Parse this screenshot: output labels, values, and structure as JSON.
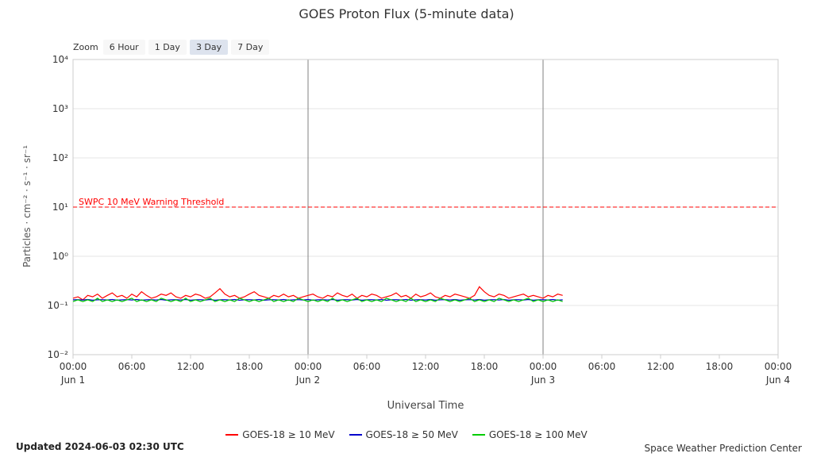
{
  "title": "GOES Proton Flux (5-minute data)",
  "zoom": {
    "label": "Zoom",
    "buttons": [
      {
        "label": "6 Hour",
        "selected": false
      },
      {
        "label": "1 Day",
        "selected": false
      },
      {
        "label": "3 Day",
        "selected": true
      },
      {
        "label": "7 Day",
        "selected": false
      }
    ]
  },
  "x_axis": {
    "title": "Universal Time"
  },
  "y_axis": {
    "title": "Particles · cm⁻² · s⁻¹ · sr⁻¹"
  },
  "footer": {
    "updated": "Updated 2024-06-03 02:30 UTC",
    "credit": "Space Weather Prediction Center"
  },
  "colors": {
    "grid": "#e6e6e6",
    "axis": "#cccccc",
    "day_line": "#808080",
    "text": "#333333",
    "threshold": "#ff0000",
    "zoom_selected_bg": "#dde3ee",
    "zoom_bg": "#f7f7f7"
  },
  "chart_data": {
    "type": "line",
    "title": "GOES Proton Flux (5-minute data)",
    "xlabel": "Universal Time",
    "ylabel": "Particles · cm⁻² · s⁻¹ · sr⁻¹",
    "y_scale": "log",
    "ylim": [
      0.01,
      10000
    ],
    "xlim": [
      0,
      72
    ],
    "x_unit": "hours since 2024-06-01 00:00 UTC",
    "grid": "horizontal-major",
    "legend_position": "bottom",
    "x_ticks": [
      {
        "label": "00:00",
        "hours": 0
      },
      {
        "label": "06:00",
        "hours": 6
      },
      {
        "label": "12:00",
        "hours": 12
      },
      {
        "label": "18:00",
        "hours": 18
      },
      {
        "label": "00:00",
        "hours": 24
      },
      {
        "label": "06:00",
        "hours": 30
      },
      {
        "label": "12:00",
        "hours": 36
      },
      {
        "label": "18:00",
        "hours": 42
      },
      {
        "label": "00:00",
        "hours": 48
      },
      {
        "label": "06:00",
        "hours": 54
      },
      {
        "label": "12:00",
        "hours": 60
      },
      {
        "label": "18:00",
        "hours": 66
      },
      {
        "label": "00:00",
        "hours": 72
      }
    ],
    "day_labels": [
      {
        "label": "Jun 1",
        "hours": 0
      },
      {
        "label": "Jun 2",
        "hours": 24
      },
      {
        "label": "Jun 3",
        "hours": 48
      },
      {
        "label": "Jun 4",
        "hours": 72
      }
    ],
    "day_lines_hours": [
      24,
      48
    ],
    "y_ticks": [
      {
        "label": "10⁴",
        "value": 10000
      },
      {
        "label": "10³",
        "value": 1000
      },
      {
        "label": "10²",
        "value": 100
      },
      {
        "label": "10¹",
        "value": 10
      },
      {
        "label": "10⁰",
        "value": 1
      },
      {
        "label": "10⁻¹",
        "value": 0.1
      },
      {
        "label": "10⁻²",
        "value": 0.01
      }
    ],
    "threshold": {
      "label": "SWPC 10 MeV Warning Threshold",
      "value": 10,
      "color": "#ff0000"
    },
    "x_start": 0,
    "x_step": 0.5,
    "series": [
      {
        "name": "GOES-18 ≥ 10 MeV",
        "color": "#ff0000",
        "values": [
          0.14,
          0.15,
          0.13,
          0.16,
          0.15,
          0.17,
          0.14,
          0.16,
          0.18,
          0.15,
          0.16,
          0.14,
          0.17,
          0.15,
          0.19,
          0.16,
          0.14,
          0.15,
          0.17,
          0.16,
          0.18,
          0.15,
          0.14,
          0.16,
          0.15,
          0.17,
          0.16,
          0.14,
          0.15,
          0.18,
          0.22,
          0.17,
          0.15,
          0.16,
          0.14,
          0.15,
          0.17,
          0.19,
          0.16,
          0.15,
          0.14,
          0.16,
          0.15,
          0.17,
          0.15,
          0.16,
          0.14,
          0.15,
          0.16,
          0.17,
          0.15,
          0.14,
          0.16,
          0.15,
          0.18,
          0.16,
          0.15,
          0.17,
          0.14,
          0.16,
          0.15,
          0.17,
          0.16,
          0.14,
          0.15,
          0.16,
          0.18,
          0.15,
          0.16,
          0.14,
          0.17,
          0.15,
          0.16,
          0.18,
          0.15,
          0.14,
          0.16,
          0.15,
          0.17,
          0.16,
          0.15,
          0.14,
          0.16,
          0.24,
          0.19,
          0.16,
          0.15,
          0.17,
          0.16,
          0.14,
          0.15,
          0.16,
          0.17,
          0.15,
          0.16,
          0.15,
          0.14,
          0.16,
          0.15,
          0.17,
          0.16
        ]
      },
      {
        "name": "GOES-18 ≥ 50 MeV",
        "color": "#0000cc",
        "values": [
          0.13,
          0.131,
          0.129,
          0.132,
          0.128,
          0.13,
          0.131,
          0.129,
          0.132,
          0.128,
          0.13,
          0.131,
          0.129,
          0.132,
          0.128,
          0.13,
          0.131,
          0.129,
          0.132,
          0.128,
          0.13,
          0.131,
          0.129,
          0.132,
          0.128,
          0.13,
          0.131,
          0.129,
          0.132,
          0.128,
          0.13,
          0.131,
          0.129,
          0.132,
          0.128,
          0.13,
          0.131,
          0.129,
          0.132,
          0.128,
          0.13,
          0.131,
          0.129,
          0.132,
          0.128,
          0.13,
          0.131,
          0.129,
          0.132,
          0.128,
          0.13,
          0.131,
          0.129,
          0.132,
          0.128,
          0.13,
          0.131,
          0.129,
          0.132,
          0.128,
          0.13,
          0.131,
          0.129,
          0.132,
          0.128,
          0.13,
          0.131,
          0.129,
          0.132,
          0.128,
          0.13,
          0.131,
          0.129,
          0.132,
          0.128,
          0.13,
          0.131,
          0.129,
          0.132,
          0.128,
          0.13,
          0.131,
          0.129,
          0.132,
          0.128,
          0.13,
          0.131,
          0.129,
          0.132,
          0.128,
          0.13,
          0.131,
          0.129,
          0.132,
          0.128,
          0.13,
          0.131,
          0.129,
          0.132,
          0.128,
          0.13
        ]
      },
      {
        "name": "GOES-18 ≥ 100 MeV",
        "color": "#00cc00",
        "values": [
          0.12,
          0.13,
          0.12,
          0.13,
          0.12,
          0.14,
          0.12,
          0.13,
          0.12,
          0.13,
          0.12,
          0.13,
          0.14,
          0.12,
          0.13,
          0.12,
          0.13,
          0.12,
          0.14,
          0.13,
          0.12,
          0.13,
          0.12,
          0.14,
          0.12,
          0.13,
          0.12,
          0.13,
          0.14,
          0.12,
          0.13,
          0.12,
          0.13,
          0.12,
          0.14,
          0.13,
          0.12,
          0.13,
          0.12,
          0.13,
          0.14,
          0.12,
          0.13,
          0.12,
          0.13,
          0.12,
          0.14,
          0.13,
          0.12,
          0.13,
          0.12,
          0.13,
          0.12,
          0.14,
          0.12,
          0.13,
          0.12,
          0.13,
          0.14,
          0.12,
          0.13,
          0.12,
          0.13,
          0.12,
          0.14,
          0.13,
          0.12,
          0.13,
          0.12,
          0.14,
          0.12,
          0.13,
          0.12,
          0.13,
          0.12,
          0.14,
          0.13,
          0.12,
          0.13,
          0.12,
          0.13,
          0.14,
          0.12,
          0.13,
          0.12,
          0.13,
          0.12,
          0.14,
          0.13,
          0.12,
          0.13,
          0.12,
          0.13,
          0.14,
          0.12,
          0.13,
          0.12,
          0.13,
          0.12,
          0.13,
          0.12
        ]
      }
    ]
  }
}
